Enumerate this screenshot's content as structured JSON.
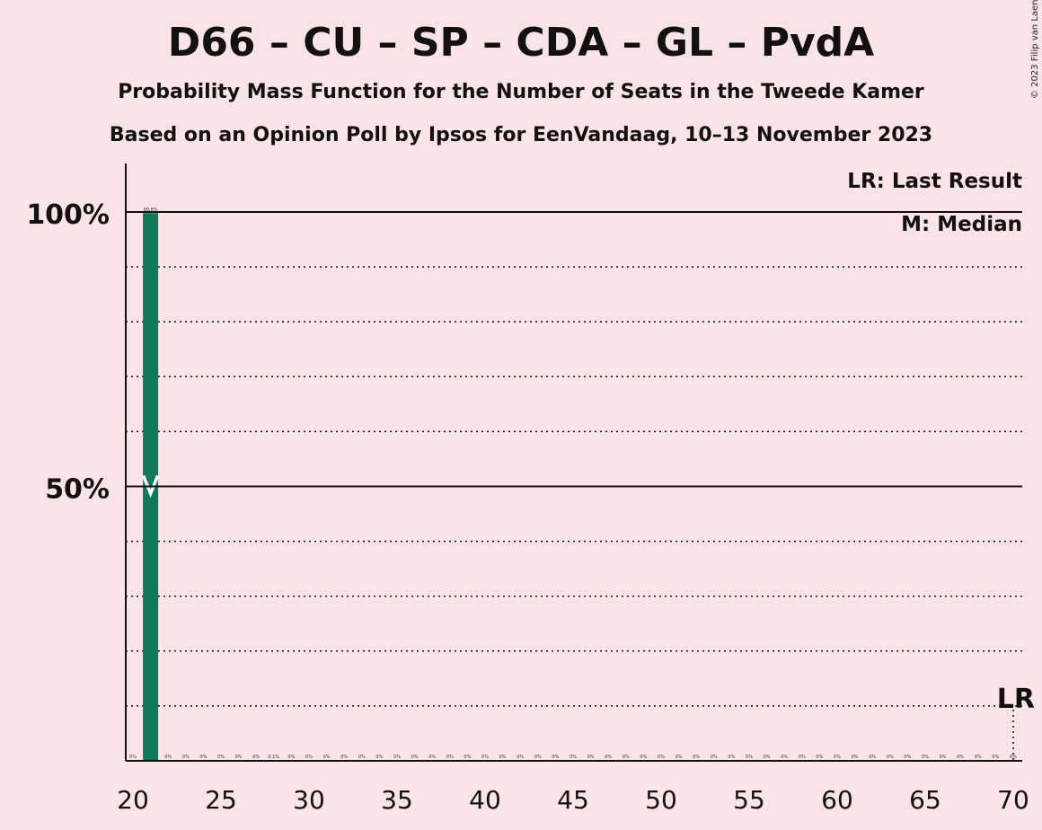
{
  "title": "D66 – CU – SP – CDA – GL – PvdA",
  "subtitle": "Probability Mass Function for the Number of Seats in the Tweede Kamer",
  "subtitle2": "Based on an Opinion Poll by Ipsos for EenVandaag, 10–13 November 2023",
  "copyright": "© 2023 Filip van Laenen",
  "colors": {
    "background": "#fbe4e7",
    "bar": "#0e7a5a",
    "axis": "#111111"
  },
  "chart_data": {
    "type": "bar",
    "x": [
      20,
      21,
      22,
      23,
      24,
      25,
      26,
      27,
      28,
      29,
      30,
      31,
      32,
      33,
      34,
      35,
      36,
      37,
      38,
      39,
      40,
      41,
      42,
      43,
      44,
      45,
      46,
      47,
      48,
      49,
      50,
      51,
      52,
      53,
      54,
      55,
      56,
      57,
      58,
      59,
      60,
      61,
      62,
      63,
      64,
      65,
      66,
      67,
      68,
      69,
      70
    ],
    "values": [
      0,
      99.8,
      0,
      0,
      0,
      0,
      0,
      0,
      0.1,
      0,
      0,
      0,
      0,
      0,
      0,
      0,
      0,
      0,
      0,
      0,
      0,
      0,
      0,
      0,
      0,
      0,
      0,
      0,
      0,
      0,
      0,
      0,
      0,
      0,
      0,
      0,
      0,
      0,
      0,
      0,
      0,
      0,
      0,
      0,
      0,
      0,
      0,
      0,
      0,
      0,
      0
    ],
    "labels": [
      "0%",
      "99.8%",
      "0%",
      "0%",
      "0%",
      "0%",
      "0%",
      "0%",
      "0.1%",
      "0%",
      "0%",
      "0%",
      "0%",
      "0%",
      "0%",
      "0%",
      "0%",
      "0%",
      "0%",
      "0%",
      "0%",
      "0%",
      "0%",
      "0%",
      "0%",
      "0%",
      "0%",
      "0%",
      "0%",
      "0%",
      "0%",
      "0%",
      "0%",
      "0%",
      "0%",
      "0%",
      "0%",
      "0%",
      "0%",
      "0%",
      "0%",
      "0%",
      "0%",
      "0%",
      "0%",
      "0%",
      "0%",
      "0%",
      "0%",
      "0%",
      "0%"
    ],
    "xticks": [
      20,
      25,
      30,
      35,
      40,
      45,
      50,
      55,
      60,
      65,
      70
    ],
    "yticks": [
      {
        "value": 50,
        "label": "50%"
      },
      {
        "value": 100,
        "label": "100%"
      }
    ],
    "gridlines": [
      10,
      20,
      30,
      40,
      60,
      70,
      80,
      90
    ],
    "ylim": [
      0,
      100
    ],
    "median": 21,
    "last_result": 70,
    "legend": {
      "lr": "LR: Last Result",
      "m": "M: Median",
      "placement": "top-right"
    },
    "lr_marker": "LR"
  }
}
